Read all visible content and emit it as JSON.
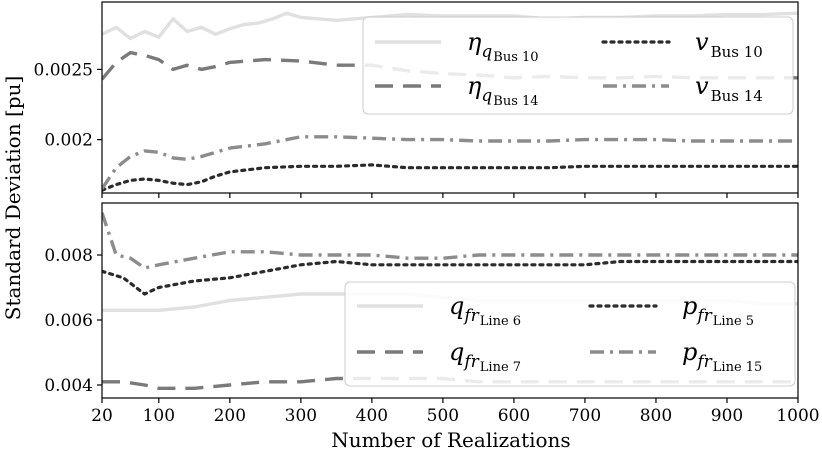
{
  "chart_data": {
    "type": "line",
    "x_label": "Number of Realizations",
    "y_label": "Standard Deviation [pu]",
    "x_ticks": [
      20,
      100,
      200,
      300,
      400,
      500,
      600,
      700,
      800,
      900,
      1000
    ],
    "panels": [
      {
        "name": "top",
        "ylim": [
          0.00162,
          0.00298
        ],
        "y_ticks": [
          0.002,
          0.0025
        ],
        "y_tick_labels": [
          "0.002",
          "0.0025"
        ],
        "legend_position": "top-right",
        "legend_columns": 2,
        "series": [
          {
            "name": "η_{q_Bus 10}",
            "label_main": "η",
            "label_sub": "q",
            "label_subsub": "Bus 10",
            "color": "#e0e0e0",
            "style": "solid",
            "x": [
              20,
              40,
              60,
              80,
              100,
              120,
              140,
              160,
              180,
              200,
              220,
              240,
              260,
              280,
              300,
              350,
              400,
              450,
              500,
              550,
              600,
              650,
              700,
              750,
              800,
              850,
              900,
              950,
              1000
            ],
            "y": [
              0.00275,
              0.0028,
              0.00272,
              0.00277,
              0.00273,
              0.00286,
              0.00277,
              0.0028,
              0.00275,
              0.00279,
              0.00282,
              0.00283,
              0.00286,
              0.0029,
              0.00287,
              0.00285,
              0.00287,
              0.00289,
              0.00288,
              0.00288,
              0.00288,
              0.00286,
              0.00287,
              0.00287,
              0.00288,
              0.00288,
              0.00289,
              0.00289,
              0.0029
            ]
          },
          {
            "name": "η_{q_Bus 14}",
            "label_main": "η",
            "label_sub": "q",
            "label_subsub": "Bus 14",
            "color": "#7a7a7a",
            "style": "dashed",
            "x": [
              20,
              40,
              60,
              80,
              100,
              120,
              140,
              160,
              180,
              200,
              250,
              300,
              350,
              400,
              450,
              500,
              550,
              600,
              650,
              700,
              750,
              800,
              850,
              900,
              950,
              1000
            ],
            "y": [
              0.00243,
              0.00255,
              0.00262,
              0.0026,
              0.00257,
              0.0025,
              0.00253,
              0.0025,
              0.00252,
              0.00255,
              0.00257,
              0.00256,
              0.00253,
              0.00253,
              0.00249,
              0.00247,
              0.00246,
              0.00244,
              0.00245,
              0.00244,
              0.00244,
              0.00245,
              0.00244,
              0.00244,
              0.00244,
              0.00244
            ]
          },
          {
            "name": "v_{Bus 10}",
            "label_main": "v",
            "label_sub": "Bus 10",
            "label_subsub": "",
            "color": "#2b2b2b",
            "style": "dotted",
            "x": [
              20,
              40,
              60,
              80,
              100,
              120,
              140,
              160,
              180,
              200,
              250,
              300,
              350,
              400,
              450,
              500,
              550,
              600,
              650,
              700,
              750,
              800,
              850,
              900,
              950,
              1000
            ],
            "y": [
              0.00164,
              0.00168,
              0.00171,
              0.00172,
              0.00171,
              0.00169,
              0.00168,
              0.0017,
              0.00174,
              0.00177,
              0.0018,
              0.00181,
              0.00181,
              0.00182,
              0.0018,
              0.0018,
              0.0018,
              0.0018,
              0.0018,
              0.00181,
              0.00181,
              0.00181,
              0.00181,
              0.00181,
              0.00181,
              0.00181
            ]
          },
          {
            "name": "v_{Bus 14}",
            "label_main": "v",
            "label_sub": "Bus 14",
            "label_subsub": "",
            "color": "#8c8c8c",
            "style": "dashdot",
            "x": [
              20,
              40,
              60,
              80,
              100,
              120,
              140,
              160,
              180,
              200,
              250,
              300,
              350,
              400,
              450,
              500,
              550,
              600,
              650,
              700,
              750,
              800,
              850,
              900,
              950,
              1000
            ],
            "y": [
              0.00165,
              0.0018,
              0.00188,
              0.00192,
              0.00191,
              0.00187,
              0.00186,
              0.00188,
              0.00191,
              0.00194,
              0.00197,
              0.00202,
              0.00202,
              0.00201,
              0.002,
              0.002,
              0.00199,
              0.00199,
              0.00199,
              0.002,
              0.002,
              0.002,
              0.00199,
              0.00199,
              0.00199,
              0.00199
            ]
          }
        ]
      },
      {
        "name": "bottom",
        "ylim": [
          0.0036,
          0.0096
        ],
        "y_ticks": [
          0.004,
          0.006,
          0.008
        ],
        "y_tick_labels": [
          "0.004",
          "0.006",
          "0.008"
        ],
        "legend_position": "bottom-right",
        "legend_columns": 2,
        "series": [
          {
            "name": "q_{fr_Line 6}",
            "label_main": "q",
            "label_sub": "fr",
            "label_subsub": "Line 6",
            "color": "#e0e0e0",
            "style": "solid",
            "x": [
              20,
              50,
              80,
              100,
              150,
              200,
              250,
              300,
              350,
              400,
              450,
              500,
              550,
              600,
              650,
              700,
              750,
              800,
              850,
              900,
              950,
              1000
            ],
            "y": [
              0.0063,
              0.0063,
              0.0063,
              0.0063,
              0.0064,
              0.0066,
              0.0067,
              0.0068,
              0.0068,
              0.0068,
              0.0068,
              0.0067,
              0.0066,
              0.0066,
              0.0066,
              0.0066,
              0.0066,
              0.0066,
              0.0066,
              0.0066,
              0.0065,
              0.0065
            ]
          },
          {
            "name": "q_{fr_Line 7}",
            "label_main": "q",
            "label_sub": "fr",
            "label_subsub": "Line 7",
            "color": "#7a7a7a",
            "style": "dashed",
            "x": [
              20,
              50,
              80,
              100,
              150,
              200,
              250,
              300,
              350,
              400,
              450,
              500,
              550,
              600,
              650,
              700,
              750,
              800,
              850,
              900,
              950,
              1000
            ],
            "y": [
              0.0041,
              0.0041,
              0.004,
              0.0039,
              0.0039,
              0.004,
              0.0041,
              0.0041,
              0.0042,
              0.0042,
              0.0042,
              0.0042,
              0.0041,
              0.0041,
              0.0041,
              0.0041,
              0.0041,
              0.0041,
              0.0041,
              0.0041,
              0.0041,
              0.0041
            ]
          },
          {
            "name": "p_{fr_Line 5}",
            "label_main": "p",
            "label_sub": "fr",
            "label_subsub": "Line 5",
            "color": "#2b2b2b",
            "style": "dotted",
            "x": [
              20,
              50,
              80,
              100,
              150,
              200,
              250,
              300,
              350,
              400,
              450,
              500,
              550,
              600,
              650,
              700,
              750,
              800,
              850,
              900,
              950,
              1000
            ],
            "y": [
              0.0075,
              0.0073,
              0.0068,
              0.007,
              0.0072,
              0.0073,
              0.0075,
              0.0077,
              0.0078,
              0.0077,
              0.0077,
              0.0077,
              0.0077,
              0.0077,
              0.0077,
              0.0077,
              0.0078,
              0.0078,
              0.0078,
              0.0078,
              0.0078,
              0.0078
            ]
          },
          {
            "name": "p_{fr_Line 15}",
            "label_main": "p",
            "label_sub": "fr",
            "label_subsub": "Line 15",
            "color": "#8c8c8c",
            "style": "dashdot",
            "x": [
              20,
              40,
              60,
              80,
              100,
              150,
              200,
              250,
              300,
              350,
              400,
              450,
              500,
              550,
              600,
              650,
              700,
              750,
              800,
              850,
              900,
              950,
              1000
            ],
            "y": [
              0.0093,
              0.008,
              0.0079,
              0.0076,
              0.0077,
              0.0079,
              0.0081,
              0.0081,
              0.008,
              0.008,
              0.008,
              0.0079,
              0.0079,
              0.008,
              0.008,
              0.008,
              0.008,
              0.008,
              0.008,
              0.008,
              0.008,
              0.008,
              0.008
            ]
          }
        ]
      }
    ]
  }
}
